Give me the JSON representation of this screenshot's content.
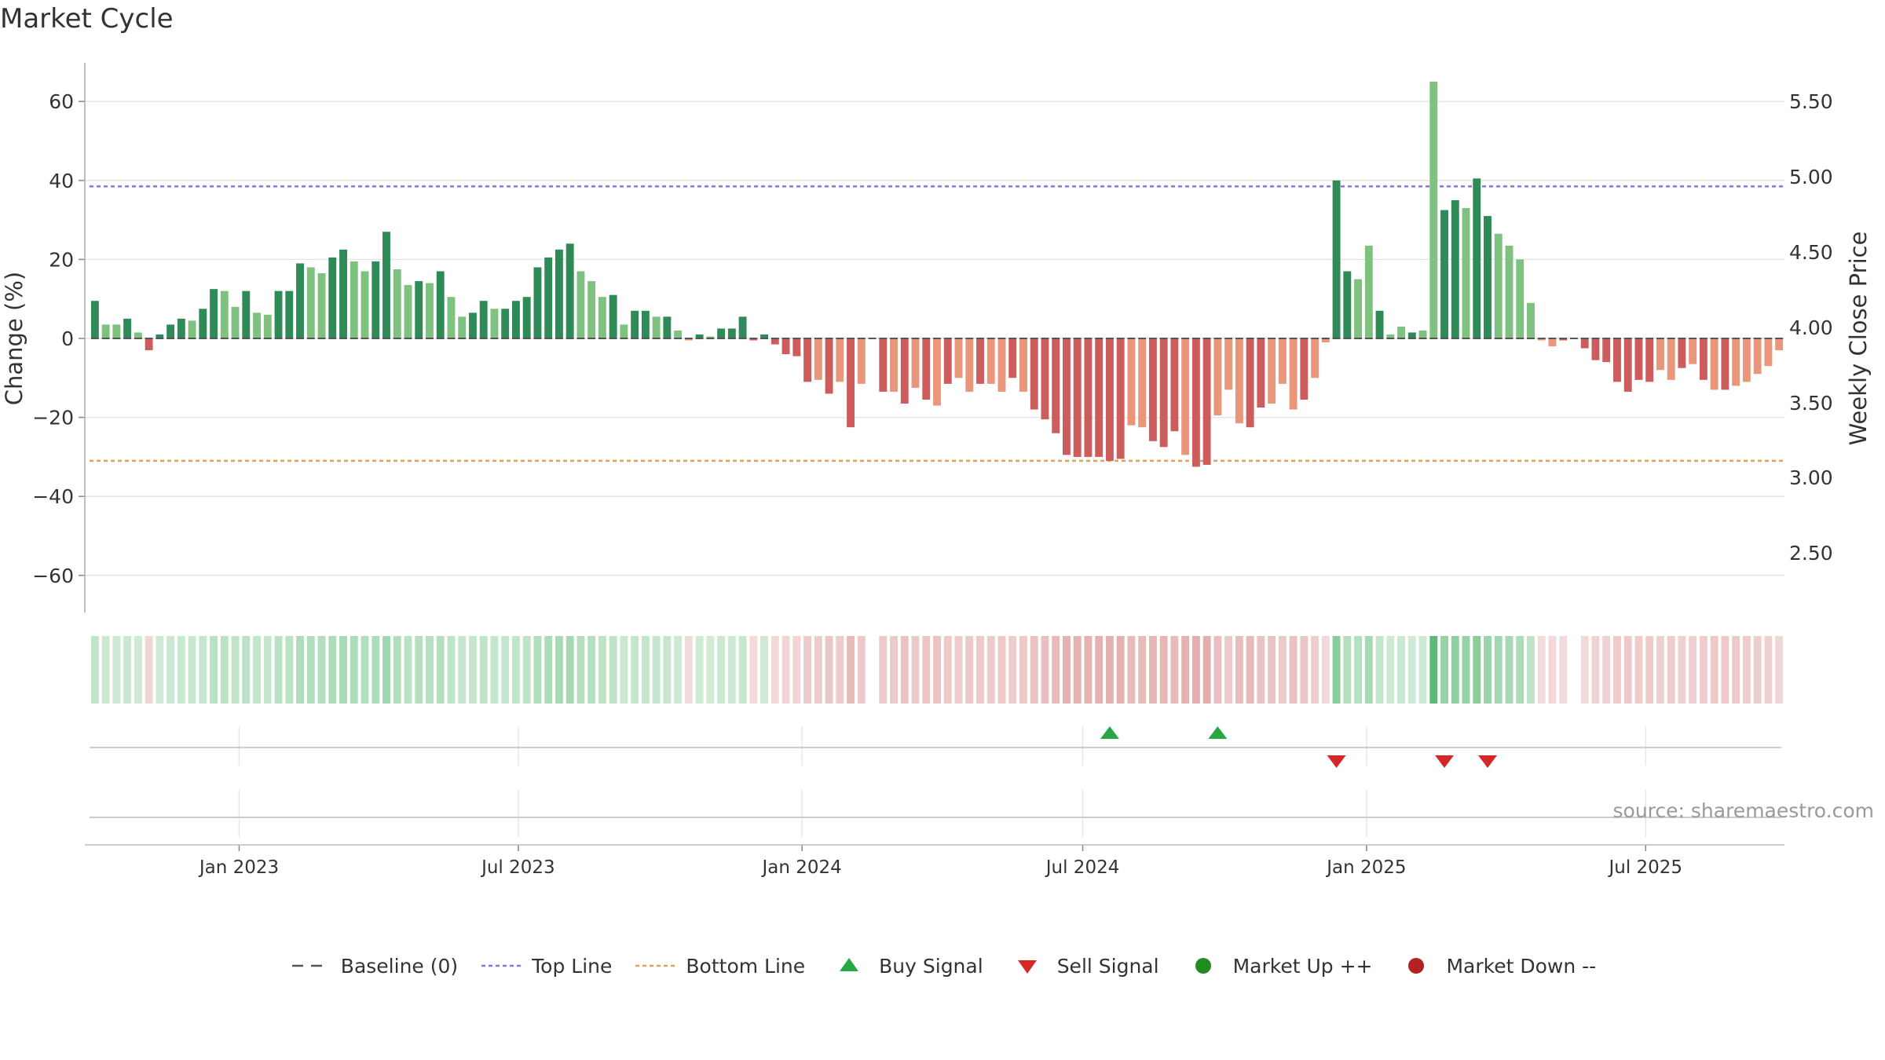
{
  "title": "Market Cycle",
  "source": "source: sharemaestro.com",
  "colors": {
    "bar_up_strong": "#2e8b57",
    "bar_up_light": "#7fc17f",
    "bar_down_strong": "#cd5c5c",
    "bar_down_light": "#e9967a",
    "top_line": "#9370db",
    "bottom_line": "#e0a060",
    "baseline": "#555555",
    "buy": "#27a844",
    "sell": "#d62728",
    "market_up": "#228b22",
    "market_down": "#b22222"
  },
  "legend": [
    {
      "label": "Baseline (0)",
      "icon": "dashed-line-icon",
      "color": "#555555"
    },
    {
      "label": "Top Line",
      "icon": "dotted-line-icon",
      "color": "#9370db"
    },
    {
      "label": "Bottom Line",
      "icon": "dotted-line-icon",
      "color": "#e0a060"
    },
    {
      "label": "Buy Signal",
      "icon": "triangle-up-icon",
      "color": "#27a844"
    },
    {
      "label": "Sell Signal",
      "icon": "triangle-down-icon",
      "color": "#d62728"
    },
    {
      "label": "Market Up ++",
      "icon": "circle-icon",
      "color": "#228b22"
    },
    {
      "label": "Market Down --",
      "icon": "circle-icon",
      "color": "#b22222"
    }
  ],
  "chart_data": {
    "type": "bar",
    "title": "Market Cycle",
    "ylabel": "Change (%)",
    "y2label": "Weekly Close Price",
    "ylim": [
      -70,
      70
    ],
    "y_ticks": [
      60,
      40,
      20,
      0,
      -20,
      -40,
      -60
    ],
    "y2_ticks": [
      "5.50",
      "5.00",
      "4.50",
      "4.00",
      "3.50",
      "3.00",
      "2.50"
    ],
    "x_ticks": [
      "Jan 2023",
      "Jul 2023",
      "Jan 2024",
      "Jul 2024",
      "Jan 2025",
      "Jul 2025"
    ],
    "top_line": 38.5,
    "bottom_line": -31,
    "grid": true,
    "legend_position": "bottom",
    "start_date": "2022-09-26",
    "frequency": "weekly",
    "values": [
      9.5,
      3.5,
      3.5,
      5,
      1.5,
      -3,
      1,
      3.5,
      5,
      4.5,
      7.5,
      12.5,
      12,
      8,
      12,
      6.5,
      6,
      12,
      12,
      19,
      18,
      16.5,
      20.5,
      22.5,
      19.5,
      17,
      19.5,
      27,
      17.5,
      13.5,
      14.5,
      14,
      17,
      10.5,
      5.5,
      6.5,
      9.5,
      7.5,
      7.5,
      9.5,
      10.5,
      18,
      20.5,
      22.5,
      24,
      17,
      14.5,
      10.5,
      11,
      3.5,
      7,
      7,
      5.5,
      5.5,
      2,
      -0.5,
      1,
      0.5,
      2.5,
      2.5,
      5.5,
      -0.5,
      1,
      -1.5,
      -4,
      -4.5,
      -11,
      -10.5,
      -14,
      -11,
      -22.5,
      -11.5,
      0,
      -13.5,
      -13.5,
      -16.5,
      -12.5,
      -15.5,
      -17,
      -11.5,
      -10,
      -13.5,
      -11.5,
      -11.5,
      -13.5,
      -10,
      -13.5,
      -18,
      -20.5,
      -24,
      -29.5,
      -30,
      -30,
      -30,
      -31,
      -30.5,
      -22,
      -22.5,
      -26,
      -27.5,
      -23.5,
      -29.5,
      -32.5,
      -32,
      -19.5,
      -13,
      -21.5,
      -22.5,
      -17.5,
      -16.5,
      -11.5,
      -18,
      -15.5,
      -10,
      -1,
      40,
      17,
      15,
      23.5,
      7,
      1,
      3,
      1.5,
      2,
      65,
      32.5,
      35,
      33,
      40.5,
      31,
      26.5,
      23.5,
      20,
      9,
      -0.5,
      -2,
      -0.5,
      0,
      -2.5,
      -5.5,
      -6,
      -11,
      -13.5,
      -10.5,
      -11,
      -8,
      -10.5,
      -7.5,
      -6.5,
      -10.5,
      -13,
      -13,
      -12,
      -11,
      -9,
      -7,
      -3
    ],
    "shades": [
      "s",
      "l",
      "l",
      "s",
      "l",
      "s",
      "s",
      "s",
      "s",
      "l",
      "s",
      "s",
      "l",
      "l",
      "s",
      "l",
      "l",
      "s",
      "s",
      "s",
      "l",
      "l",
      "s",
      "s",
      "l",
      "l",
      "s",
      "s",
      "l",
      "l",
      "s",
      "l",
      "s",
      "l",
      "l",
      "s",
      "s",
      "l",
      "s",
      "s",
      "s",
      "s",
      "s",
      "s",
      "s",
      "l",
      "l",
      "l",
      "s",
      "l",
      "s",
      "s",
      "l",
      "s",
      "l",
      "l",
      "s",
      "l",
      "s",
      "s",
      "s",
      "s",
      "s",
      "s",
      "s",
      "s",
      "s",
      "l",
      "s",
      "l",
      "s",
      "l",
      "s",
      "s",
      "l",
      "s",
      "l",
      "s",
      "l",
      "s",
      "l",
      "l",
      "s",
      "l",
      "l",
      "s",
      "l",
      "s",
      "s",
      "s",
      "s",
      "s",
      "s",
      "s",
      "s",
      "s",
      "l",
      "l",
      "s",
      "s",
      "s",
      "l",
      "s",
      "s",
      "l",
      "l",
      "l",
      "s",
      "s",
      "l",
      "l",
      "l",
      "s",
      "l",
      "l",
      "s",
      "s",
      "l",
      "l",
      "s",
      "l",
      "l",
      "s",
      "l",
      "l",
      "s",
      "s",
      "l",
      "s",
      "s",
      "l",
      "l",
      "l",
      "l",
      "l",
      "l",
      "s",
      "s",
      "s",
      "s",
      "s",
      "s",
      "s",
      "s",
      "s",
      "l",
      "l",
      "s",
      "l",
      "s",
      "l",
      "s",
      "l",
      "l",
      "l",
      "l",
      "l",
      "l",
      "l"
    ],
    "buy_signals": [
      "2024-07-15",
      "2024-09-23"
    ],
    "sell_signals": [
      "2024-12-09",
      "2025-02-17",
      "2025-03-17"
    ]
  }
}
